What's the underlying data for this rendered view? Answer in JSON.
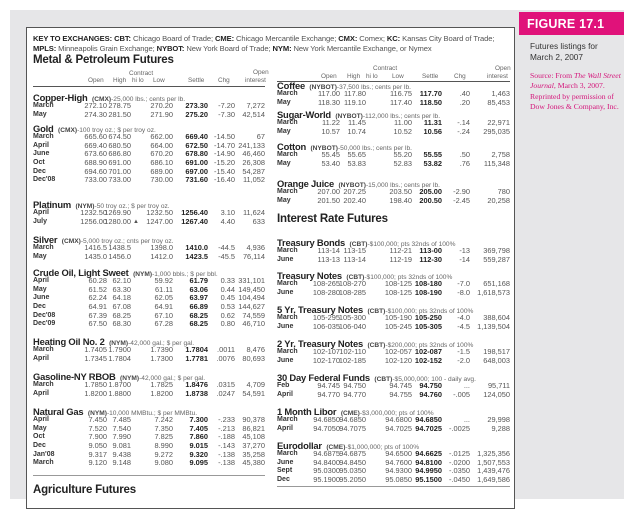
{
  "figure": {
    "label": "FIGURE 17.1",
    "description": "Futures listings for March 2, 2007",
    "source_prefix": "Source: From ",
    "source_pub": "The Wall Street Journal",
    "source_suffix": ", March 3, 2007. Reprinted by permission of Dow Jones & Company, Inc.",
    "accent_color": "#e0127a"
  },
  "key": {
    "lead": "KEY TO EXCHANGES:",
    "items": [
      {
        "code": "CBT:",
        "name": "Chicago Board of Trade;"
      },
      {
        "code": "CME:",
        "name": "Chicago Mercantile Exchange;"
      },
      {
        "code": "CMX:",
        "name": "Comex;"
      },
      {
        "code": "KC:",
        "name": "Kansas City Board of Trade;"
      },
      {
        "code": "MPLS:",
        "name": "Minneapolis Grain Exchange;"
      },
      {
        "code": "NYBOT:",
        "name": "New York Board of Trade;"
      },
      {
        "code": "NYM:",
        "name": "New York Mercantile Exchange, or Nymex"
      }
    ]
  },
  "columns": {
    "open": "Open",
    "high": "High",
    "contract": "Contract",
    "hilo": "hi lo",
    "low": "Low",
    "settle": "Settle",
    "chg": "Chg",
    "oi1": "Open",
    "oi2": "interest"
  },
  "headings": {
    "metal": "Metal & Petroleum Futures",
    "interest": "Interest Rate Futures",
    "agriculture": "Agriculture Futures"
  },
  "left_sections": [
    {
      "name": "Copper-High",
      "exch": "(CMX)",
      "spec": "-25,000 lbs.; cents per lb.",
      "rows": [
        [
          "March",
          "272.10",
          "278.75",
          "",
          "270.20",
          "273.30",
          "-7.20",
          "7,272"
        ],
        [
          "May",
          "274.30",
          "281.50",
          "",
          "271.90",
          "275.20",
          "-7.30",
          "42,514"
        ]
      ]
    },
    {
      "name": "Gold",
      "exch": "(CMX)",
      "spec": "-100 troy oz.; $ per troy oz.",
      "rows": [
        [
          "March",
          "665.60",
          "674.50",
          "",
          "662.00",
          "669.40",
          "-14.50",
          "67"
        ],
        [
          "April",
          "669.40",
          "680.50",
          "",
          "664.00",
          "672.50",
          "-14.70",
          "241,133"
        ],
        [
          "June",
          "673.60",
          "686.80",
          "",
          "670.20",
          "678.80",
          "-14.90",
          "46,460"
        ],
        [
          "Oct",
          "688.90",
          "691.00",
          "",
          "686.10",
          "691.00",
          "-15.20",
          "26,308"
        ],
        [
          "Dec",
          "694.60",
          "701.00",
          "",
          "689.00",
          "697.00",
          "-15.40",
          "54,287"
        ],
        [
          "Dec'08",
          "733.00",
          "733.00",
          "",
          "730.00",
          "731.60",
          "-16.40",
          "11,052"
        ]
      ]
    },
    {
      "name": "Platinum",
      "exch": "(NYM)",
      "spec": "-50 troy oz.; $ per troy oz.",
      "rows": [
        [
          "April",
          "1232.50",
          "1269.90",
          "",
          "1232.50",
          "1256.40",
          "3.10",
          "11,624"
        ],
        [
          "July",
          "1256.00",
          "1280.00",
          "▲",
          "1247.00",
          "1267.40",
          "4.40",
          "633"
        ]
      ]
    },
    {
      "name": "Silver",
      "exch": "(CMX)",
      "spec": "-5,000 troy oz.; cnts per troy oz.",
      "rows": [
        [
          "March",
          "1416.5",
          "1438.5",
          "",
          "1398.0",
          "1410.0",
          "-44.5",
          "4,936"
        ],
        [
          "May",
          "1435.0",
          "1456.0",
          "",
          "1412.0",
          "1423.5",
          "-45.5",
          "76,114"
        ]
      ]
    },
    {
      "name": "Crude Oil, Light Sweet",
      "exch": "(NYM)",
      "spec": "-1,000 bbls.; $ per bbl.",
      "rows": [
        [
          "April",
          "60.28",
          "62.10",
          "",
          "59.92",
          "61.79",
          "0.33",
          "331,101"
        ],
        [
          "May",
          "61.52",
          "63.30",
          "",
          "61.11",
          "63.06",
          "0.44",
          "149,450"
        ],
        [
          "June",
          "62.24",
          "64.18",
          "",
          "62.05",
          "63.97",
          "0.45",
          "104,494"
        ],
        [
          "Dec",
          "64.91",
          "67.08",
          "",
          "64.91",
          "66.89",
          "0.53",
          "144,627"
        ],
        [
          "Dec'08",
          "67.39",
          "68.25",
          "",
          "67.10",
          "68.25",
          "0.62",
          "74,559"
        ],
        [
          "Dec'09",
          "67.50",
          "68.30",
          "",
          "67.28",
          "68.25",
          "0.80",
          "46,710"
        ]
      ]
    },
    {
      "name": "Heating Oil No. 2",
      "exch": "(NYM)",
      "spec": "-42,000 gal.; $ per gal.",
      "rows": [
        [
          "March",
          "1.7405",
          "1.7900",
          "",
          "1.7390",
          "1.7804",
          ".0011",
          "8,476"
        ],
        [
          "April",
          "1.7345",
          "1.7804",
          "",
          "1.7300",
          "1.7781",
          ".0076",
          "80,693"
        ]
      ]
    },
    {
      "name": "Gasoline-NY RBOB",
      "exch": "(NYM)",
      "spec": "-42,000 gal.; $ per gal.",
      "rows": [
        [
          "March",
          "1.7850",
          "1.8700",
          "",
          "1.7825",
          "1.8476",
          ".0315",
          "4,709"
        ],
        [
          "April",
          "1.8200",
          "1.8800",
          "",
          "1.8200",
          "1.8738",
          ".0247",
          "54,591"
        ]
      ]
    },
    {
      "name": "Natural Gas",
      "exch": "(NYM)",
      "spec": "-10,000 MMBtu.; $ per MMBtu.",
      "rows": [
        [
          "April",
          "7.450",
          "7.485",
          "",
          "7.242",
          "7.300",
          "-.233",
          "90,378"
        ],
        [
          "May",
          "7.520",
          "7.540",
          "",
          "7.350",
          "7.405",
          "-.213",
          "86,821"
        ],
        [
          "Oct",
          "7.900",
          "7.990",
          "",
          "7.825",
          "7.860",
          "-.188",
          "45,108"
        ],
        [
          "Dec",
          "9.050",
          "9.081",
          "",
          "8.990",
          "9.015",
          "-.143",
          "37,270"
        ],
        [
          "Jan'08",
          "9.317",
          "9.438",
          "",
          "9.272",
          "9.320",
          "-.138",
          "35,258"
        ],
        [
          "March",
          "9.120",
          "9.148",
          "",
          "9.080",
          "9.095",
          "-.138",
          "45,380"
        ]
      ]
    }
  ],
  "right_sections": [
    {
      "name": "Coffee",
      "exch": "(NYBOT)",
      "spec": "-37,500 lbs.; cents per lb.",
      "rows": [
        [
          "March",
          "117.00",
          "117.80",
          "",
          "116.75",
          "117.70",
          ".40",
          "1,463"
        ],
        [
          "May",
          "118.30",
          "119.10",
          "",
          "117.40",
          "118.50",
          ".20",
          "85,453"
        ]
      ]
    },
    {
      "name": "Sugar-World",
      "exch": "(NYBOT)",
      "spec": "-112,000 lbs.; cents per lb.",
      "rows": [
        [
          "March",
          "11.22",
          "11.45",
          "",
          "11.00",
          "11.31",
          "-.14",
          "22,971"
        ],
        [
          "May",
          "10.57",
          "10.74",
          "",
          "10.52",
          "10.56",
          "-.24",
          "295,035"
        ]
      ]
    },
    {
      "name": "Cotton",
      "exch": "(NYBOT)",
      "spec": "-50,000 lbs.; cents per lb.",
      "rows": [
        [
          "March",
          "55.45",
          "55.65",
          "",
          "55.20",
          "55.55",
          ".50",
          "2,758"
        ],
        [
          "May",
          "53.40",
          "53.83",
          "",
          "52.83",
          "53.82",
          ".76",
          "115,348"
        ]
      ]
    },
    {
      "name": "Orange Juice",
      "exch": "(NYBOT)",
      "spec": "-15,000 lbs.; cents per lb.",
      "rows": [
        [
          "March",
          "207.00",
          "207.25",
          "",
          "203.50",
          "205.00",
          "-2.90",
          "780"
        ],
        [
          "May",
          "201.50",
          "202.40",
          "",
          "198.40",
          "200.50",
          "-2.45",
          "20,258"
        ]
      ]
    },
    {
      "name": "Treasury Bonds",
      "exch": "(CBT)",
      "spec": "-$100,000; pts 32nds of 100%",
      "rows": [
        [
          "March",
          "113-14",
          "113-15",
          "",
          "112-21",
          "113-00",
          "-13",
          "369,798"
        ],
        [
          "June",
          "113-13",
          "113-14",
          "",
          "112-19",
          "112-30",
          "-14",
          "559,287"
        ]
      ]
    },
    {
      "name": "Treasury Notes",
      "exch": "(CBT)",
      "spec": "-$100,000; pts 32nds of 100%",
      "rows": [
        [
          "March",
          "108-265",
          "108-270",
          "",
          "108-125",
          "108-180",
          "-7.0",
          "651,168"
        ],
        [
          "June",
          "108-280",
          "108-285",
          "",
          "108-125",
          "108-190",
          "-8.0",
          "1,618,573"
        ]
      ]
    },
    {
      "name": "5 Yr. Treasury Notes",
      "exch": "(CBT)",
      "spec": "-$100,000; pts 32nds of 100%",
      "rows": [
        [
          "March",
          "105-295",
          "105-300",
          "",
          "105-190",
          "105-250",
          "-4.0",
          "388,604"
        ],
        [
          "June",
          "106-035",
          "106-040",
          "",
          "105-245",
          "105-305",
          "-4.5",
          "1,139,504"
        ]
      ]
    },
    {
      "name": "2 Yr. Treasury Notes",
      "exch": "(CBT)",
      "spec": "-$200,000; pts 32nds of 100%",
      "rows": [
        [
          "March",
          "102-107",
          "102-110",
          "",
          "102-057",
          "102-087",
          "-1.5",
          "198,517"
        ],
        [
          "June",
          "102-170",
          "102-185",
          "",
          "102-120",
          "102-152",
          "-2.0",
          "648,003"
        ]
      ]
    },
    {
      "name": "30 Day Federal Funds",
      "exch": "(CBT)",
      "spec": "-$5,000,000; 100 - daily avg.",
      "rows": [
        [
          "Feb",
          "94.745",
          "94.750",
          "",
          "94.745",
          "94.750",
          "...",
          "95,711"
        ],
        [
          "April",
          "94.770",
          "94.770",
          "",
          "94.755",
          "94.760",
          "-.005",
          "124,050"
        ]
      ]
    },
    {
      "name": "1 Month Libor",
      "exch": "(CME)",
      "spec": "-$3,000,000; pts of 100%",
      "rows": [
        [
          "March",
          "94.6850",
          "94.6850",
          "",
          "94.6800",
          "94.6850",
          "...",
          "29,998"
        ],
        [
          "April",
          "94.7050",
          "94.7075",
          "",
          "94.7025",
          "94.7025",
          "-.0025",
          "9,288"
        ]
      ]
    },
    {
      "name": "Eurodollar",
      "exch": "(CME)",
      "spec": "-$1,000,000; pts of 100%",
      "rows": [
        [
          "March",
          "94.6875",
          "94.6875",
          "",
          "94.6500",
          "94.6625",
          "-.0125",
          "1,325,356"
        ],
        [
          "June",
          "94.8400",
          "94.8450",
          "",
          "94.7600",
          "94.8100",
          "-.0200",
          "1,507,553"
        ],
        [
          "Sept",
          "95.0300",
          "95.0350",
          "",
          "94.9300",
          "94.9950",
          "-.0350",
          "1,439,476"
        ],
        [
          "Dec",
          "95.1900",
          "95.2050",
          "",
          "95.0850",
          "95.1500",
          "-.0450",
          "1,649,586"
        ]
      ]
    }
  ]
}
